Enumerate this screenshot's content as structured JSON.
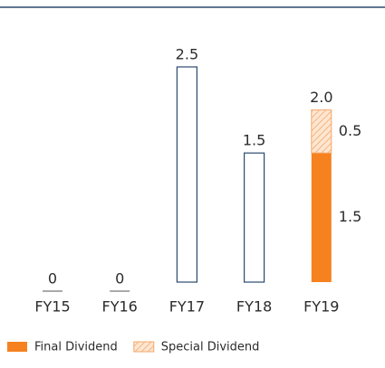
{
  "chart_data": {
    "type": "stacked_bar",
    "categories": [
      "FY15",
      "FY16",
      "FY17",
      "FY18",
      "FY19"
    ],
    "totals": {
      "values": [
        0,
        0,
        2.5,
        1.5,
        2.0
      ],
      "value_labels": [
        "0",
        "0",
        "2.5",
        "1.5",
        "2.0"
      ],
      "color": "#2b4a6f"
    },
    "series": [
      {
        "name": "Final Dividend",
        "color": "#f5821f",
        "values": [
          null,
          null,
          null,
          null,
          1.5
        ]
      },
      {
        "name": "Special Dividend",
        "color": "#f8c9a0",
        "hatch": true,
        "values": [
          null,
          null,
          null,
          null,
          0.5
        ]
      }
    ],
    "legend": "bottom-left"
  }
}
